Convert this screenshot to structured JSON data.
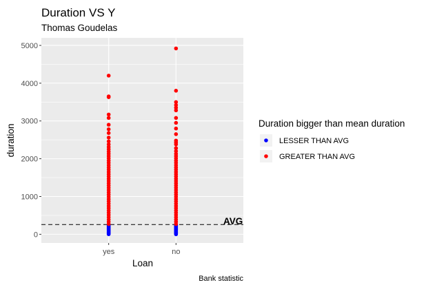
{
  "chart_data": {
    "type": "scatter",
    "title": "Duration VS Y",
    "subtitle": "Thomas Goudelas",
    "xlabel": "Loan",
    "ylabel": "duration",
    "caption": "Bank statistic",
    "categories": [
      "yes",
      "no"
    ],
    "ylim": [
      -230,
      5200
    ],
    "yticks": [
      0,
      1000,
      2000,
      3000,
      4000,
      5000
    ],
    "grid": true,
    "legend_position": "right",
    "legend_title": "Duration bigger than mean duration",
    "hline": {
      "value": 258,
      "label": "AVG",
      "style": "dashed"
    },
    "series": [
      {
        "name": "LESSER THAN AVG",
        "color": "#0000ff",
        "points": [
          {
            "x": "yes",
            "y": 2
          },
          {
            "x": "yes",
            "y": 20
          },
          {
            "x": "yes",
            "y": 40
          },
          {
            "x": "yes",
            "y": 60
          },
          {
            "x": "yes",
            "y": 80
          },
          {
            "x": "yes",
            "y": 100
          },
          {
            "x": "yes",
            "y": 120
          },
          {
            "x": "yes",
            "y": 140
          },
          {
            "x": "yes",
            "y": 160
          },
          {
            "x": "yes",
            "y": 180
          },
          {
            "x": "yes",
            "y": 200
          },
          {
            "x": "yes",
            "y": 220
          },
          {
            "x": "yes",
            "y": 240
          },
          {
            "x": "yes",
            "y": 255
          },
          {
            "x": "no",
            "y": 0
          },
          {
            "x": "no",
            "y": 20
          },
          {
            "x": "no",
            "y": 40
          },
          {
            "x": "no",
            "y": 60
          },
          {
            "x": "no",
            "y": 80
          },
          {
            "x": "no",
            "y": 100
          },
          {
            "x": "no",
            "y": 120
          },
          {
            "x": "no",
            "y": 140
          },
          {
            "x": "no",
            "y": 160
          },
          {
            "x": "no",
            "y": 180
          },
          {
            "x": "no",
            "y": 200
          },
          {
            "x": "no",
            "y": 220
          },
          {
            "x": "no",
            "y": 240
          },
          {
            "x": "no",
            "y": 255
          }
        ]
      },
      {
        "name": "GREATER THAN AVG",
        "color": "#ff0000",
        "points": [
          {
            "x": "yes",
            "y": 270
          },
          {
            "x": "yes",
            "y": 330
          },
          {
            "x": "yes",
            "y": 390
          },
          {
            "x": "yes",
            "y": 450
          },
          {
            "x": "yes",
            "y": 510
          },
          {
            "x": "yes",
            "y": 570
          },
          {
            "x": "yes",
            "y": 630
          },
          {
            "x": "yes",
            "y": 690
          },
          {
            "x": "yes",
            "y": 750
          },
          {
            "x": "yes",
            "y": 810
          },
          {
            "x": "yes",
            "y": 870
          },
          {
            "x": "yes",
            "y": 930
          },
          {
            "x": "yes",
            "y": 990
          },
          {
            "x": "yes",
            "y": 1050
          },
          {
            "x": "yes",
            "y": 1110
          },
          {
            "x": "yes",
            "y": 1170
          },
          {
            "x": "yes",
            "y": 1230
          },
          {
            "x": "yes",
            "y": 1290
          },
          {
            "x": "yes",
            "y": 1350
          },
          {
            "x": "yes",
            "y": 1410
          },
          {
            "x": "yes",
            "y": 1470
          },
          {
            "x": "yes",
            "y": 1530
          },
          {
            "x": "yes",
            "y": 1590
          },
          {
            "x": "yes",
            "y": 1650
          },
          {
            "x": "yes",
            "y": 1710
          },
          {
            "x": "yes",
            "y": 1770
          },
          {
            "x": "yes",
            "y": 1830
          },
          {
            "x": "yes",
            "y": 1890
          },
          {
            "x": "yes",
            "y": 1950
          },
          {
            "x": "yes",
            "y": 2010
          },
          {
            "x": "yes",
            "y": 2070
          },
          {
            "x": "yes",
            "y": 2130
          },
          {
            "x": "yes",
            "y": 2190
          },
          {
            "x": "yes",
            "y": 2250
          },
          {
            "x": "yes",
            "y": 2310
          },
          {
            "x": "yes",
            "y": 2380
          },
          {
            "x": "yes",
            "y": 2460
          },
          {
            "x": "yes",
            "y": 2560
          },
          {
            "x": "yes",
            "y": 2680
          },
          {
            "x": "yes",
            "y": 2780
          },
          {
            "x": "yes",
            "y": 2900
          },
          {
            "x": "yes",
            "y": 3080
          },
          {
            "x": "yes",
            "y": 3170
          },
          {
            "x": "yes",
            "y": 3630
          },
          {
            "x": "yes",
            "y": 3650
          },
          {
            "x": "yes",
            "y": 4200
          },
          {
            "x": "no",
            "y": 270
          },
          {
            "x": "no",
            "y": 330
          },
          {
            "x": "no",
            "y": 390
          },
          {
            "x": "no",
            "y": 450
          },
          {
            "x": "no",
            "y": 510
          },
          {
            "x": "no",
            "y": 570
          },
          {
            "x": "no",
            "y": 630
          },
          {
            "x": "no",
            "y": 690
          },
          {
            "x": "no",
            "y": 750
          },
          {
            "x": "no",
            "y": 810
          },
          {
            "x": "no",
            "y": 870
          },
          {
            "x": "no",
            "y": 930
          },
          {
            "x": "no",
            "y": 990
          },
          {
            "x": "no",
            "y": 1050
          },
          {
            "x": "no",
            "y": 1110
          },
          {
            "x": "no",
            "y": 1170
          },
          {
            "x": "no",
            "y": 1230
          },
          {
            "x": "no",
            "y": 1290
          },
          {
            "x": "no",
            "y": 1350
          },
          {
            "x": "no",
            "y": 1410
          },
          {
            "x": "no",
            "y": 1470
          },
          {
            "x": "no",
            "y": 1530
          },
          {
            "x": "no",
            "y": 1590
          },
          {
            "x": "no",
            "y": 1650
          },
          {
            "x": "no",
            "y": 1710
          },
          {
            "x": "no",
            "y": 1770
          },
          {
            "x": "no",
            "y": 1830
          },
          {
            "x": "no",
            "y": 1890
          },
          {
            "x": "no",
            "y": 1950
          },
          {
            "x": "no",
            "y": 2010
          },
          {
            "x": "no",
            "y": 2070
          },
          {
            "x": "no",
            "y": 2130
          },
          {
            "x": "no",
            "y": 2200
          },
          {
            "x": "no",
            "y": 2280
          },
          {
            "x": "no",
            "y": 2380
          },
          {
            "x": "no",
            "y": 2430
          },
          {
            "x": "no",
            "y": 2480
          },
          {
            "x": "no",
            "y": 2650
          },
          {
            "x": "no",
            "y": 2800
          },
          {
            "x": "no",
            "y": 2950
          },
          {
            "x": "no",
            "y": 3080
          },
          {
            "x": "no",
            "y": 3280
          },
          {
            "x": "no",
            "y": 3350
          },
          {
            "x": "no",
            "y": 3420
          },
          {
            "x": "no",
            "y": 3500
          },
          {
            "x": "no",
            "y": 3800
          },
          {
            "x": "no",
            "y": 4920
          }
        ]
      }
    ]
  }
}
